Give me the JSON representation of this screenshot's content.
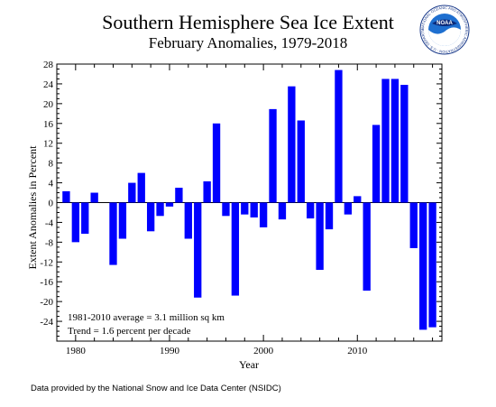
{
  "chart_data": {
    "type": "bar",
    "title": "Southern Hemisphere Sea Ice Extent",
    "subtitle": "February Anomalies, 1979-2018",
    "xlabel": "Year",
    "ylabel": "Extent Anomalies in Percent",
    "x": [
      1979,
      1980,
      1981,
      1982,
      1983,
      1984,
      1985,
      1986,
      1987,
      1988,
      1989,
      1990,
      1991,
      1992,
      1993,
      1994,
      1995,
      1996,
      1997,
      1998,
      1999,
      2000,
      2001,
      2002,
      2003,
      2004,
      2005,
      2006,
      2007,
      2008,
      2009,
      2010,
      2011,
      2012,
      2013,
      2014,
      2015,
      2016,
      2017,
      2018
    ],
    "values": [
      2.3,
      -8.0,
      -6.3,
      2.0,
      0.0,
      -12.6,
      -7.3,
      4.0,
      6.0,
      -5.8,
      -2.7,
      -0.8,
      3.0,
      -7.3,
      -19.2,
      4.3,
      16.0,
      -2.7,
      -18.8,
      -2.4,
      -3.0,
      -5.0,
      18.9,
      -3.4,
      23.5,
      16.6,
      -3.2,
      -13.6,
      -5.4,
      26.8,
      -2.4,
      1.3,
      -17.8,
      15.7,
      25.0,
      25.0,
      23.8,
      -9.2,
      -25.7,
      -25.2
    ],
    "ylim": [
      -28,
      28
    ],
    "yticks": [
      -24,
      -20,
      -16,
      -12,
      -8,
      -4,
      0,
      4,
      8,
      12,
      16,
      20,
      24,
      28
    ],
    "xticks": [
      1980,
      1990,
      2000,
      2010
    ],
    "xlim": [
      1978,
      2019
    ],
    "bar_color": "#0000ff",
    "grid": false,
    "annotations": [
      "1981-2010 average =  3.1 million sq km",
      "Trend =   1.6 percent per decade"
    ]
  },
  "credit": "Data provided by the National Snow and Ice Data Center (NSIDC)",
  "logo": {
    "text": "NOAA",
    "ring_text": "NATIONAL OCEANIC AND ATMOSPHERIC ADMINISTRATION · U.S. DEPARTMENT OF COMMERCE ·"
  }
}
